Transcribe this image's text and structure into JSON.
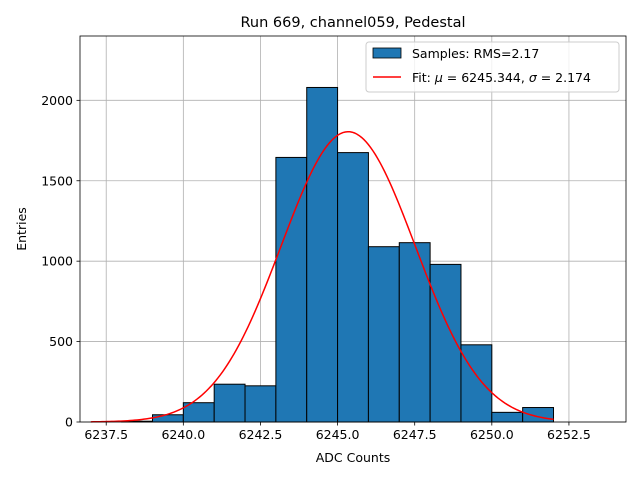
{
  "chart_data": {
    "type": "bar",
    "title": "Run 669, channel059, Pedestal",
    "xlabel": "ADC Counts",
    "ylabel": "Entries",
    "xlim": [
      6236.65,
      6254.35
    ],
    "ylim": [
      0,
      2400
    ],
    "xticks": [
      "6237.5",
      "6240.0",
      "6242.5",
      "6245.0",
      "6247.5",
      "6250.0",
      "6252.5"
    ],
    "xtick_values": [
      6237.5,
      6240.0,
      6242.5,
      6245.0,
      6247.5,
      6250.0,
      6252.5
    ],
    "yticks": [
      "0",
      "500",
      "1000",
      "1500",
      "2000"
    ],
    "ytick_values": [
      0,
      500,
      1000,
      1500,
      2000
    ],
    "grid": true,
    "legend_position": "top-right",
    "histogram": {
      "name": "Samples: RMS=2.17",
      "color": "#1f77b4",
      "edgecolor": "#000000",
      "bin_edges": [
        6238,
        6239,
        6240,
        6241,
        6242,
        6243,
        6244,
        6245,
        6246,
        6247,
        6248,
        6249,
        6250,
        6251,
        6252
      ],
      "counts": [
        5,
        45,
        120,
        235,
        225,
        1645,
        2080,
        1675,
        1090,
        1115,
        980,
        480,
        60,
        90
      ]
    },
    "fit": {
      "name_prefix": "Fit: ",
      "name_mu": "μ",
      "name_mid": " = 6245.344, ",
      "name_sigma": "σ",
      "name_end": " = 2.174",
      "type": "gaussian",
      "mu": 6245.344,
      "sigma": 2.174,
      "amplitude": 1805,
      "x_range": [
        6237.0,
        6252.0
      ],
      "color": "#ff0000"
    }
  }
}
